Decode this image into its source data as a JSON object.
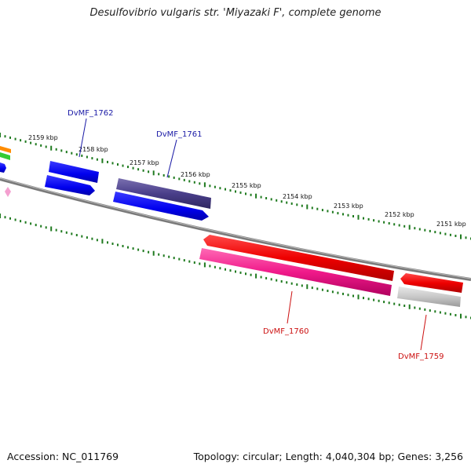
{
  "title": "Desulfovibrio vulgaris str. 'Miyazaki F', complete genome",
  "footer": {
    "accession": "Accession: NC_011769",
    "summary": "Topology: circular; Length: 4,040,304 bp; Genes: 3,256"
  },
  "colors": {
    "backbone": "#8a8a8a",
    "ticks": "#1f7a1f",
    "label_forward": "#1a1aa6",
    "label_reverse": "#cc1111"
  },
  "scale_labels": [
    "2159 kbp",
    "2158 kbp",
    "2157 kbp",
    "2156 kbp",
    "2155 kbp",
    "2154 kbp",
    "2153 kbp",
    "2152 kbp",
    "2151 kbp"
  ],
  "gene_labels": [
    {
      "text": "DvMF_1762",
      "strand": "forward"
    },
    {
      "text": "DvMF_1761",
      "strand": "forward"
    },
    {
      "text": "DvMF_1760",
      "strand": "reverse"
    },
    {
      "text": "DvMF_1759",
      "strand": "reverse"
    }
  ]
}
